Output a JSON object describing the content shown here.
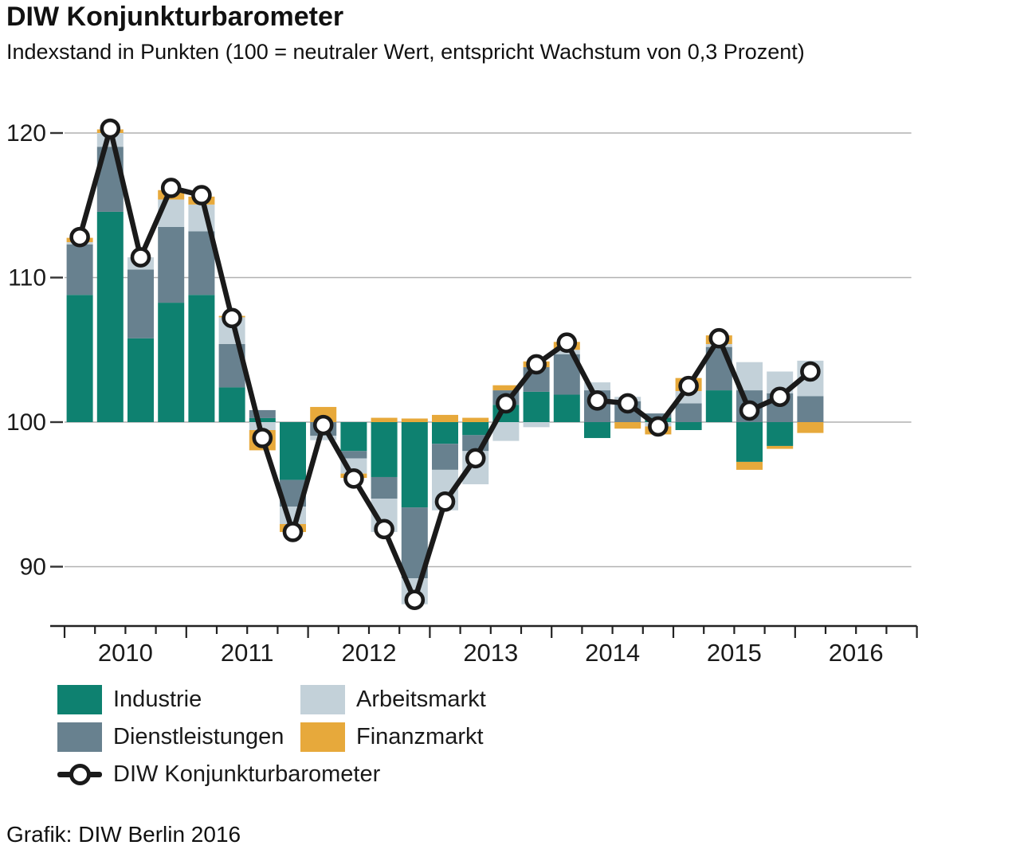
{
  "header": {
    "title": "DIW Konjunkturbarometer",
    "subtitle": "Indexstand in Punkten (100 = neutraler Wert, entspricht Wachstum von 0,3 Prozent)"
  },
  "footer": {
    "credit": "Grafik: DIW Berlin 2016"
  },
  "chart_data": {
    "type": "combo-stacked-bar-line",
    "title": "DIW Konjunkturbarometer",
    "baseline": 100,
    "ylim": [
      86,
      121.5
    ],
    "yticks": [
      90,
      100,
      110,
      120
    ],
    "year_labels": [
      "2010",
      "2011",
      "2012",
      "2013",
      "2014",
      "2015",
      "2016"
    ],
    "x": [
      "2010 Q1",
      "2010 Q2",
      "2010 Q3",
      "2010 Q4",
      "2011 Q1",
      "2011 Q2",
      "2011 Q3",
      "2011 Q4",
      "2012 Q1",
      "2012 Q2",
      "2012 Q3",
      "2012 Q4",
      "2013 Q1",
      "2013 Q2",
      "2013 Q3",
      "2013 Q4",
      "2014 Q1",
      "2014 Q2",
      "2014 Q3",
      "2014 Q4",
      "2015 Q1",
      "2015 Q2",
      "2015 Q3",
      "2015 Q4",
      "2016 Q1"
    ],
    "series": [
      {
        "name": "Industrie",
        "color": "#0e8170",
        "values": [
          8.8,
          14.55,
          5.8,
          8.26,
          8.8,
          2.4,
          0.28,
          -4.0,
          0,
          -2.0,
          -3.8,
          -5.9,
          -1.5,
          -0.9,
          1.2,
          2.1,
          1.9,
          -1.1,
          0,
          0.3,
          -0.55,
          2.2,
          -2.75,
          -1.65,
          0
        ]
      },
      {
        "name": "Dienstleistungen",
        "color": "#68818f",
        "values": [
          3.5,
          4.5,
          4.76,
          5.24,
          4.4,
          3.0,
          0.55,
          -1.85,
          -0.95,
          -0.51,
          -1.5,
          -4.9,
          -1.8,
          -1.1,
          1.0,
          1.7,
          2.8,
          2.2,
          1.45,
          0.3,
          1.3,
          3.0,
          2.2,
          2.0,
          1.8
        ]
      },
      {
        "name": "Arbeitsmarkt",
        "color": "#c3d1d9",
        "values": [
          0.15,
          0.95,
          0.84,
          1.9,
          1.85,
          1.85,
          -0.55,
          -1.2,
          -0.3,
          -1.05,
          -2.3,
          -1.8,
          -2.8,
          -2.3,
          -1.3,
          -0.35,
          0.3,
          0.55,
          0.3,
          -0.3,
          0.85,
          0.2,
          1.95,
          1.5,
          2.45
        ]
      },
      {
        "name": "Finanzmarkt",
        "color": "#e7a93b",
        "values": [
          0.3,
          0.25,
          0,
          0.65,
          0.55,
          0.1,
          -1.4,
          -0.55,
          1.05,
          -0.3,
          0.3,
          0.25,
          0.5,
          0.3,
          0.35,
          0.4,
          0.55,
          0,
          -0.45,
          -0.55,
          0.9,
          0.6,
          -0.55,
          -0.2,
          -0.75
        ]
      }
    ],
    "line": {
      "name": "DIW Konjunkturbarometer",
      "color": "#1a1a1a",
      "marker_fill": "#ffffff",
      "values": [
        112.8,
        120.3,
        111.4,
        116.2,
        115.7,
        107.2,
        98.9,
        92.4,
        99.8,
        96.1,
        92.6,
        87.7,
        94.5,
        97.5,
        101.3,
        104.0,
        105.5,
        101.5,
        101.3,
        99.7,
        102.5,
        105.8,
        100.8,
        101.75,
        103.5
      ]
    },
    "grid_color": "#b1b1b1",
    "axis_color": "#222222",
    "legend_position": "bottom-left"
  }
}
